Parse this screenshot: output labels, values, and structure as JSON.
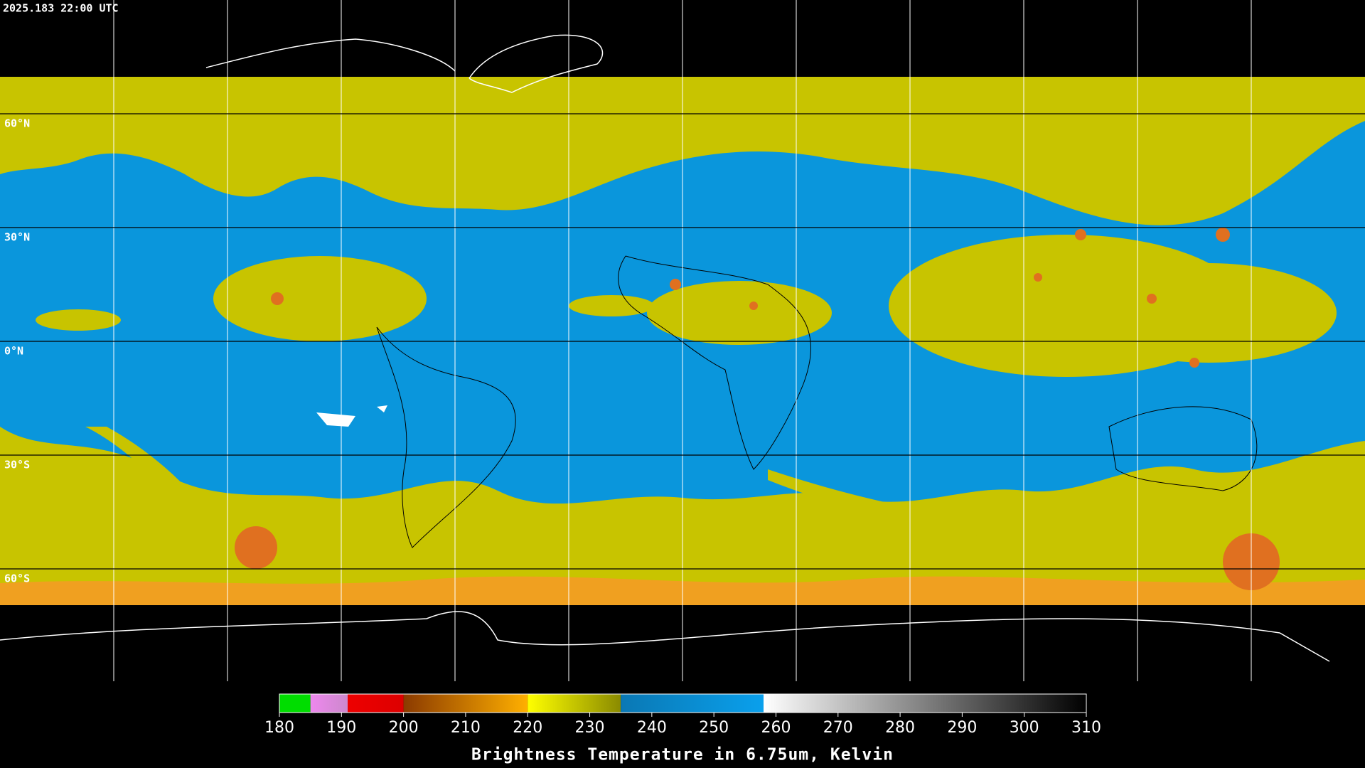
{
  "timestamp": "2025.183 22:00 UTC",
  "latitudes": [
    {
      "value": 60,
      "label": "60°N"
    },
    {
      "value": 30,
      "label": "30°N"
    },
    {
      "value": 0,
      "label": "0°N"
    },
    {
      "value": -30,
      "label": "30°S"
    },
    {
      "value": -60,
      "label": "60°S"
    }
  ],
  "colorbar": {
    "title": "Brightness Temperature in 6.75um, Kelvin",
    "range": [
      180,
      310
    ],
    "ticks": [
      180,
      190,
      200,
      210,
      220,
      230,
      240,
      250,
      260,
      270,
      280,
      290,
      300,
      310
    ],
    "segments": [
      {
        "from": 180,
        "to": 185,
        "colors": [
          "#00dd00",
          "#00dd00"
        ]
      },
      {
        "from": 185,
        "to": 191,
        "colors": [
          "#ee88ee",
          "#cc88cc"
        ]
      },
      {
        "from": 191,
        "to": 200,
        "colors": [
          "#ee0000",
          "#dd0000"
        ]
      },
      {
        "from": 200,
        "to": 220,
        "colors": [
          "#8b3a00",
          "#ffb000"
        ]
      },
      {
        "from": 220,
        "to": 235,
        "colors": [
          "#ffff00",
          "#8a8a00"
        ]
      },
      {
        "from": 235,
        "to": 258,
        "colors": [
          "#0a78b4",
          "#0aa0ec"
        ]
      },
      {
        "from": 258,
        "to": 310,
        "colors": [
          "#ffffff",
          "#000000"
        ]
      }
    ]
  }
}
